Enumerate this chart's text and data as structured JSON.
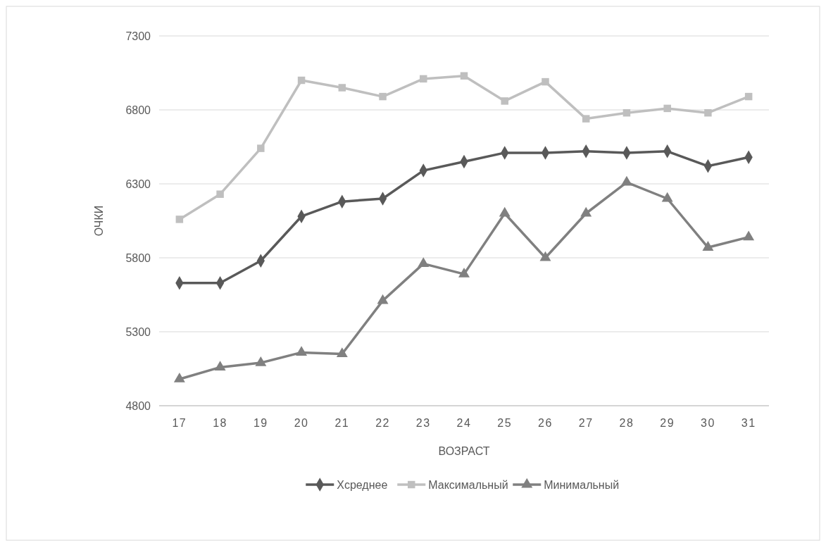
{
  "chart_data": {
    "type": "line",
    "xlabel": "ВОЗРАСТ",
    "ylabel": "ОЧКИ",
    "categories": [
      "17",
      "18",
      "19",
      "20",
      "21",
      "22",
      "23",
      "24",
      "25",
      "26",
      "27",
      "28",
      "29",
      "30",
      "31"
    ],
    "series": [
      {
        "name": "Хсреднее",
        "color": "#595959",
        "marker": "diamond",
        "values": [
          5630,
          5630,
          5780,
          6080,
          6180,
          6200,
          6390,
          6450,
          6510,
          6510,
          6520,
          6510,
          6520,
          6420,
          6480
        ]
      },
      {
        "name": "Максимальный",
        "color": "#bfbfbf",
        "marker": "square",
        "values": [
          6060,
          6230,
          6540,
          7000,
          6950,
          6890,
          7010,
          7030,
          6860,
          6990,
          6740,
          6780,
          6810,
          6780,
          6890
        ]
      },
      {
        "name": "Минимальный",
        "color": "#808080",
        "marker": "triangle",
        "values": [
          4980,
          5060,
          5090,
          5160,
          5150,
          5510,
          5760,
          5690,
          6100,
          5800,
          6100,
          6310,
          6200,
          5870,
          5940
        ]
      }
    ],
    "ylim": [
      4800,
      7300
    ],
    "yticks": [
      4800,
      5300,
      5800,
      6300,
      6800,
      7300
    ],
    "grid": "y",
    "legend": "bottom"
  }
}
